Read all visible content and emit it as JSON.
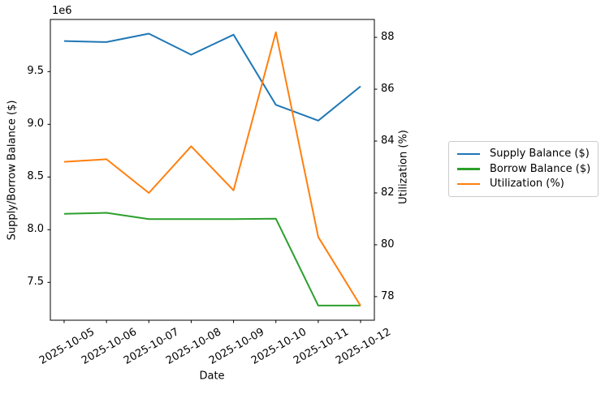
{
  "chart_data": {
    "type": "line",
    "x": [
      "2025-10-05",
      "2025-10-06",
      "2025-10-07",
      "2025-10-08",
      "2025-10-09",
      "2025-10-10",
      "2025-10-11",
      "2025-10-12"
    ],
    "series": [
      {
        "name": "Supply Balance ($)",
        "axis": "left",
        "color": "#1f77b4",
        "values": [
          9790000,
          9780000,
          9860000,
          9660000,
          9850000,
          9185000,
          9035000,
          9360000
        ]
      },
      {
        "name": "Borrow Balance ($)",
        "axis": "left",
        "color": "#2ca02c",
        "values": [
          8150000,
          8160000,
          8100000,
          8100000,
          8100000,
          8105000,
          7280000,
          7280000
        ]
      },
      {
        "name": "Utilization (%)",
        "axis": "right",
        "color": "#ff7f0e",
        "values": [
          83.2,
          83.3,
          82.0,
          83.8,
          82.1,
          88.2,
          80.3,
          77.65
        ]
      }
    ],
    "left_axis": {
      "label": "Supply/Borrow Balance ($)",
      "offset_text": "1e6",
      "tick_values": [
        7500000,
        8000000,
        8500000,
        9000000,
        9500000
      ],
      "tick_labels": [
        "7.5",
        "8.0",
        "8.5",
        "9.0",
        "9.5"
      ],
      "lim": [
        7141000,
        9995000
      ]
    },
    "right_axis": {
      "label": "Utilization (%)",
      "tick_values": [
        78,
        80,
        82,
        84,
        86,
        88
      ],
      "tick_labels": [
        "78",
        "80",
        "82",
        "84",
        "86",
        "88"
      ],
      "lim": [
        77.09,
        88.69
      ]
    },
    "x_axis": {
      "label": "Date",
      "tick_rotation_deg": 30
    },
    "grid": false,
    "legend_position": "outside-right"
  }
}
